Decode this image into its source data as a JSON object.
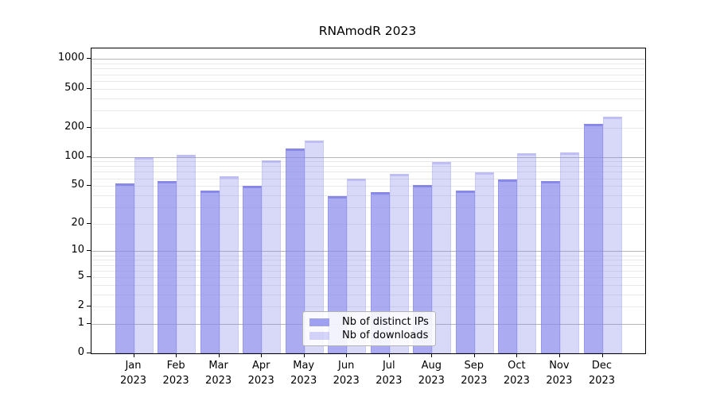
{
  "figure": {
    "title": "RNAmodR 2023"
  },
  "legend": {
    "items": [
      {
        "label": "Nb of distinct IPs",
        "swatch": "dark"
      },
      {
        "label": "Nb of downloads",
        "swatch": "light"
      }
    ]
  },
  "chart_data": {
    "type": "bar",
    "title": "RNAmodR 2023",
    "categories": [
      "Jan",
      "Feb",
      "Mar",
      "Apr",
      "May",
      "Jun",
      "Jul",
      "Aug",
      "Sep",
      "Oct",
      "Nov",
      "Dec"
    ],
    "x_tick_second_line": "2023",
    "series": [
      {
        "name": "Nb of distinct IPs",
        "values": [
          53,
          56,
          45,
          50,
          122,
          39,
          43,
          51,
          45,
          58,
          56,
          218
        ]
      },
      {
        "name": "Nb of downloads",
        "values": [
          100,
          104,
          63,
          92,
          147,
          59,
          67,
          89,
          69,
          108,
          111,
          260
        ]
      }
    ],
    "y_scale": "log1p",
    "y_ticks": [
      0,
      1,
      2,
      5,
      10,
      20,
      50,
      100,
      200,
      500,
      1000
    ],
    "ylim": [
      0,
      1285
    ],
    "grid": "horizontal major+minor",
    "legend_position": "lower center",
    "colors": {
      "bar_dark": "rgba(138,138,237,0.72)",
      "bar_light": "rgba(138,138,237,0.33)",
      "bar_dark_solid": "#abaff2",
      "bar_light_solid": "#d9d9f9",
      "grid_major": "#b5b5b5",
      "grid_minor": "#e9e9e9",
      "spine": "#000000",
      "text": "#000000"
    }
  }
}
